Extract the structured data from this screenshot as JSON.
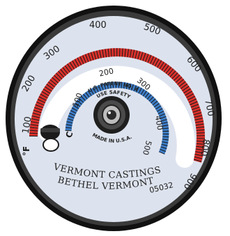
{
  "colors": {
    "face": "#dde3ee",
    "rim": "#111111",
    "red_band": "#d8312c",
    "blue_band": "#3d7cc5",
    "white_band": "#ffffff",
    "hub": "#2a2a2a"
  },
  "icons": {
    "pointer": "bimetal-pointer-icon",
    "center_screw": "center-screw-icon"
  },
  "scale": {
    "fahrenheit_unit": "°F",
    "celsius_unit": "C",
    "fahrenheit_labels": [
      "100",
      "200",
      "300",
      "400",
      "500",
      "600",
      "700",
      "800",
      "900"
    ],
    "celsius_labels": [
      "100",
      "200",
      "300",
      "400",
      "500"
    ]
  },
  "face_text": {
    "patent_line": "U.S. PATENT NO. 4306259",
    "safety_line": "USE SAFETYWIRE",
    "origin": "MADE IN U.S.A.",
    "brand": "VERMONT CASTINGS",
    "address": "BETHEL VERMONT",
    "code": "05032"
  }
}
